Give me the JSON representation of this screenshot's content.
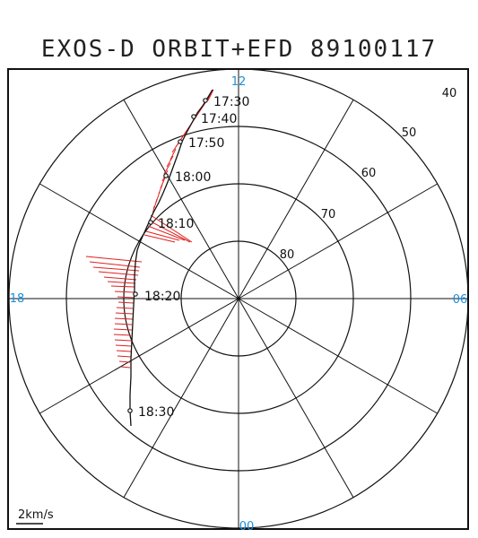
{
  "title": "EXOS-D ORBIT+EFD 89100117",
  "mlt_labels": [
    {
      "text": "12",
      "pos": "top"
    },
    {
      "text": "06",
      "pos": "right"
    },
    {
      "text": "00",
      "pos": "bottom"
    },
    {
      "text": "18",
      "pos": "left"
    }
  ],
  "latitude_labels": [
    "40",
    "50",
    "60",
    "70",
    "80"
  ],
  "scale_label": "2km/s",
  "colors": {
    "mlt": "#1a8fd8",
    "efd": "#e02020",
    "orbit": "#111111",
    "grid": "#111111"
  },
  "orbit_times": [
    "17:30",
    "17:40",
    "17:50",
    "18:00",
    "18:10",
    "18:20",
    "18:30"
  ]
}
